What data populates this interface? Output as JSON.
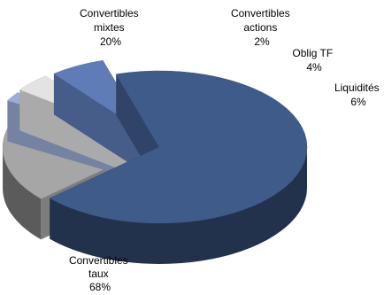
{
  "chart_data": {
    "type": "pie",
    "style": "3d-exploded",
    "title": "",
    "unit": "%",
    "slices": [
      {
        "lines": [
          "Convertibles",
          "taux",
          "68%"
        ],
        "value": 68,
        "color": "#3f5b8a"
      },
      {
        "lines": [
          "Convertibles",
          "mixtes",
          "20%"
        ],
        "value": 20,
        "color": "#a6a6a6"
      },
      {
        "lines": [
          "Convertibles",
          "actions",
          "2%"
        ],
        "value": 2,
        "color": "#9aaed8"
      },
      {
        "lines": [
          "Oblig TF",
          "4%"
        ],
        "value": 4,
        "color": "#e3e3e3"
      },
      {
        "lines": [
          "Liquidités",
          "6%"
        ],
        "value": 6,
        "color": "#5f7cb7"
      }
    ]
  }
}
